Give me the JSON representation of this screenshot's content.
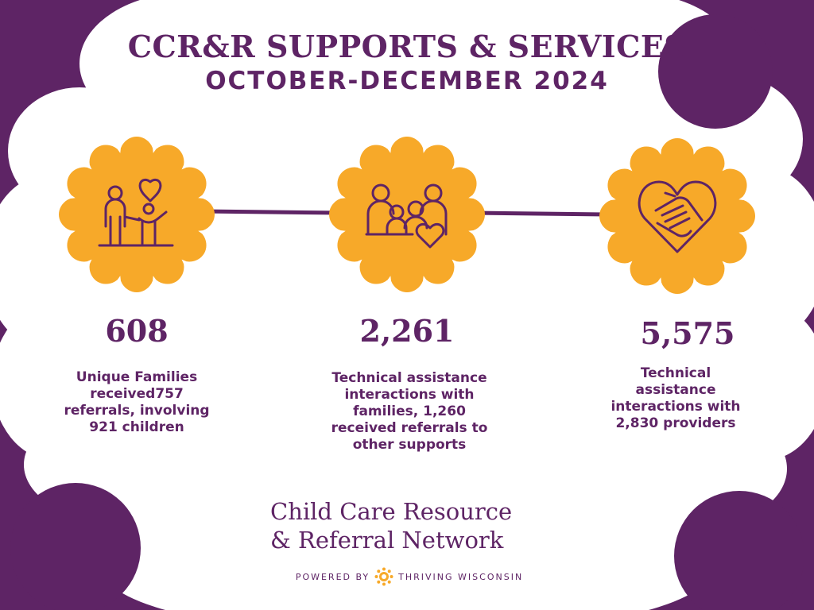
{
  "header": {
    "title": "CCR&R SUPPORTS & SERVICES",
    "subtitle": "OCTOBER-DECEMBER 2024"
  },
  "colors": {
    "purple": "#5e2465",
    "gold": "#f7a929",
    "white": "#ffffff"
  },
  "stats": [
    {
      "icon": "family-heart-icon",
      "number": "608",
      "desc_lines": [
        "Unique Families",
        "received757",
        "referrals, involving",
        "921 children"
      ]
    },
    {
      "icon": "family-group-heart-icon",
      "number": "2,261",
      "desc_lines": [
        "Technical assistance",
        "interactions with",
        "families, 1,260",
        "received referrals to",
        "other supports"
      ]
    },
    {
      "icon": "heart-hands-icon",
      "number": "5,575",
      "desc_lines": [
        "Technical",
        "assistance",
        "interactions with",
        "2,830 providers"
      ]
    }
  ],
  "footer": {
    "org_line1": "Child Care Resource",
    "org_line2": "& Referral Network",
    "powered_left": "POWERED BY",
    "powered_right": "THRIVING WISCONSIN"
  }
}
